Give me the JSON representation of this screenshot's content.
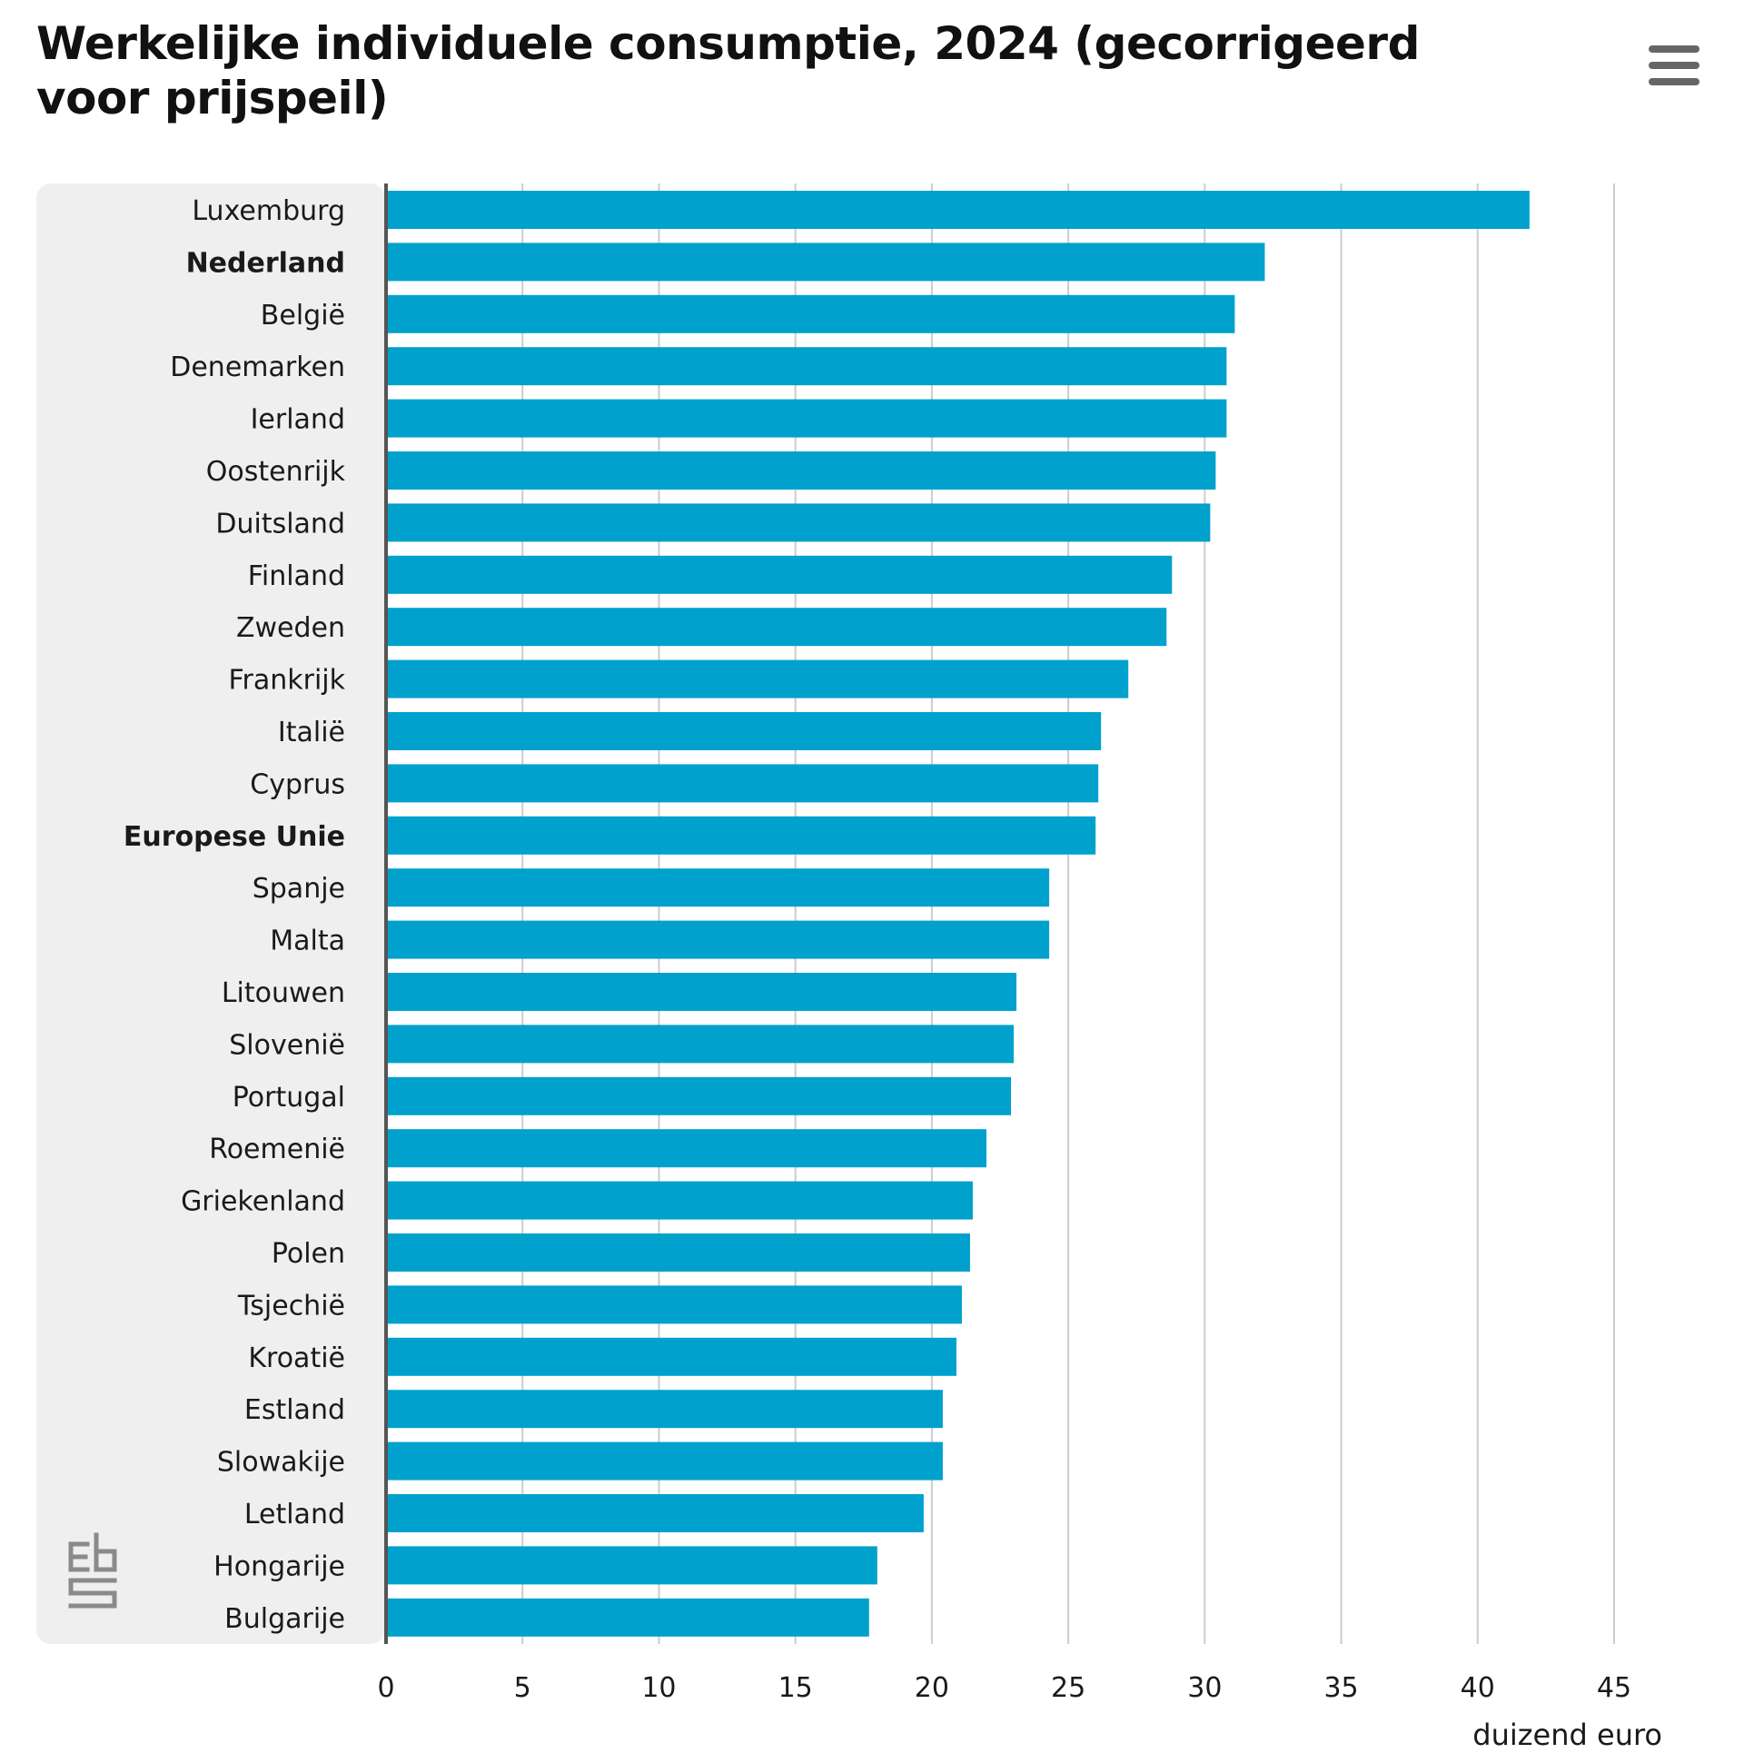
{
  "header": {
    "title": "Werkelijke individuele consumptie, 2024 (gecorrigeerd voor prijspeil)"
  },
  "menu": {
    "icon": "hamburger-menu-icon"
  },
  "logo": {
    "icon": "cbs-logo-icon",
    "text": "cbs"
  },
  "colors": {
    "bar": "#00a1cd",
    "label_panel": "#efefef",
    "axis_line": "#555555",
    "grid": "#cccccc"
  },
  "chart_data": {
    "type": "bar",
    "orientation": "horizontal",
    "title": "Werkelijke individuele consumptie, 2024 (gecorrigeerd voor prijspeil)",
    "xlabel": "duizend euro",
    "ylabel": "",
    "xlim": [
      0,
      45
    ],
    "xticks": [
      0,
      5,
      10,
      15,
      20,
      25,
      30,
      35,
      40,
      45
    ],
    "grid": true,
    "categories": [
      "Luxemburg",
      "Nederland",
      "België",
      "Denemarken",
      "Ierland",
      "Oostenrijk",
      "Duitsland",
      "Finland",
      "Zweden",
      "Frankrijk",
      "Italië",
      "Cyprus",
      "Europese Unie",
      "Spanje",
      "Malta",
      "Litouwen",
      "Slovenië",
      "Portugal",
      "Roemenië",
      "Griekenland",
      "Polen",
      "Tsjechië",
      "Kroatië",
      "Estland",
      "Slowakije",
      "Letland",
      "Hongarije",
      "Bulgarije"
    ],
    "values": [
      41.9,
      32.2,
      31.1,
      30.8,
      30.8,
      30.4,
      30.2,
      28.8,
      28.6,
      27.2,
      26.2,
      26.1,
      26.0,
      24.3,
      24.3,
      23.1,
      23.0,
      22.9,
      22.0,
      21.5,
      21.4,
      21.1,
      20.9,
      20.4,
      20.4,
      19.7,
      18.0,
      17.7
    ],
    "bold_categories": [
      "Nederland",
      "Europese Unie"
    ]
  }
}
